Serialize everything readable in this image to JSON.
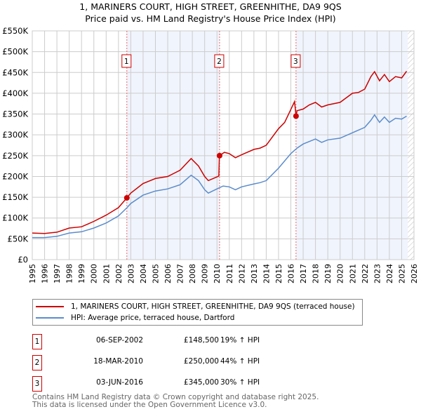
{
  "chart_data": {
    "type": "line",
    "title": "1, MARINERS COURT, HIGH STREET, GREENHITHE, DA9 9QS",
    "subtitle": "Price paid vs. HM Land Registry's House Price Index (HPI)",
    "xlim": [
      1995,
      2026
    ],
    "ylim": [
      0,
      550000
    ],
    "x_ticks": [
      "1995",
      "1996",
      "1997",
      "1998",
      "1999",
      "2000",
      "2001",
      "2002",
      "2003",
      "2004",
      "2005",
      "2006",
      "2007",
      "2008",
      "2009",
      "2010",
      "2011",
      "2012",
      "2013",
      "2014",
      "2015",
      "2016",
      "2017",
      "2018",
      "2019",
      "2020",
      "2021",
      "2022",
      "2023",
      "2024",
      "2025",
      "2026"
    ],
    "y_ticks": [
      {
        "v": 0,
        "label": "£0"
      },
      {
        "v": 50000,
        "label": "£50K"
      },
      {
        "v": 100000,
        "label": "£100K"
      },
      {
        "v": 150000,
        "label": "£150K"
      },
      {
        "v": 200000,
        "label": "£200K"
      },
      {
        "v": 250000,
        "label": "£250K"
      },
      {
        "v": 300000,
        "label": "£300K"
      },
      {
        "v": 350000,
        "label": "£350K"
      },
      {
        "v": 400000,
        "label": "£400K"
      },
      {
        "v": 450000,
        "label": "£450K"
      },
      {
        "v": 500000,
        "label": "£500K"
      },
      {
        "v": 550000,
        "label": "£550K"
      }
    ],
    "grid": true,
    "series": [
      {
        "name": "1, MARINERS COURT, HIGH STREET, GREENHITHE, DA9 9QS (terraced house)",
        "color": "#cc0000",
        "x": [
          1995,
          1996,
          1997,
          1998,
          1999,
          2000,
          2001,
          2002,
          2002.68,
          2003,
          2004,
          2005,
          2006,
          2007,
          2007.9,
          2008.5,
          2009,
          2009.3,
          2010.15,
          2010.2,
          2010.6,
          2011,
          2011.5,
          2012,
          2013,
          2013.5,
          2014,
          2015,
          2015.5,
          2016.3,
          2016.42,
          2016.5,
          2017,
          2017.5,
          2018,
          2018.5,
          2019,
          2020,
          2021,
          2021.5,
          2022,
          2022.5,
          2022.8,
          2023.2,
          2023.6,
          2024,
          2024.5,
          2025,
          2025.4
        ],
        "y": [
          64000,
          63000,
          66000,
          76000,
          79000,
          92000,
          107000,
          125000,
          148500,
          160000,
          183000,
          195000,
          200000,
          215000,
          243000,
          225000,
          200000,
          190000,
          201000,
          250000,
          258000,
          255000,
          245000,
          252000,
          265000,
          268000,
          275000,
          315000,
          330000,
          380000,
          345000,
          358000,
          362000,
          372000,
          378000,
          367000,
          372000,
          378000,
          400000,
          402000,
          410000,
          440000,
          452000,
          430000,
          445000,
          428000,
          440000,
          437000,
          453000
        ]
      },
      {
        "name": "HPI: Average price, terraced house, Dartford",
        "color": "#5b8ccc",
        "x": [
          1995,
          1996,
          1997,
          1998,
          1999,
          2000,
          2001,
          2002,
          2002.7,
          2003,
          2004,
          2005,
          2006,
          2007,
          2007.9,
          2008.5,
          2009,
          2009.3,
          2010,
          2010.5,
          2011,
          2011.5,
          2012,
          2013,
          2013.5,
          2014,
          2015,
          2016,
          2016.5,
          2017,
          2018,
          2018.5,
          2019,
          2020,
          2021,
          2022,
          2022.5,
          2022.8,
          2023.2,
          2023.6,
          2024,
          2024.5,
          2025,
          2025.4
        ],
        "y": [
          53000,
          53000,
          56000,
          64000,
          67000,
          76000,
          88000,
          105000,
          125000,
          135000,
          155000,
          165000,
          170000,
          180000,
          203000,
          190000,
          168000,
          160000,
          170000,
          177000,
          175000,
          168000,
          175000,
          182000,
          185000,
          190000,
          220000,
          255000,
          268000,
          278000,
          290000,
          282000,
          288000,
          292000,
          305000,
          318000,
          335000,
          348000,
          330000,
          343000,
          330000,
          340000,
          338000,
          345000
        ]
      }
    ],
    "sales": [
      {
        "num": "1",
        "x": 2002.68,
        "date": "06-SEP-2002",
        "price_value": 148500,
        "price": "£148,500",
        "hpi": "19% ↑ HPI"
      },
      {
        "num": "2",
        "x": 2010.21,
        "date": "18-MAR-2010",
        "price_value": 250000,
        "price": "£250,000",
        "hpi": "44% ↑ HPI"
      },
      {
        "num": "3",
        "x": 2016.42,
        "date": "03-JUN-2016",
        "price_value": 345000,
        "price": "£345,000",
        "hpi": "30% ↑ HPI"
      }
    ],
    "forecast_start": 2025.5,
    "legend_position": "below"
  },
  "footer": [
    "Contains HM Land Registry data © Crown copyright and database right 2025.",
    "This data is licensed under the Open Government Licence v3.0."
  ]
}
